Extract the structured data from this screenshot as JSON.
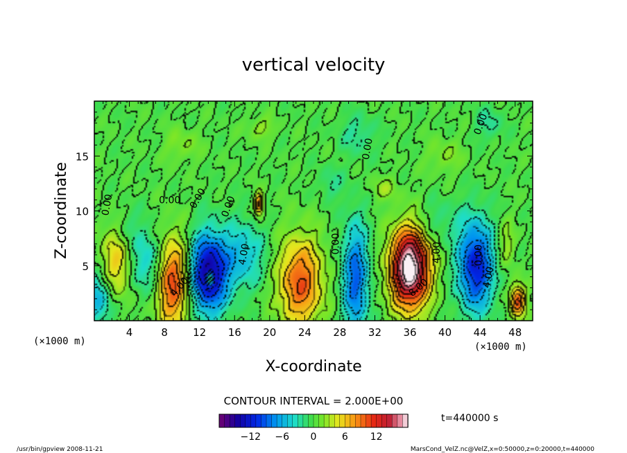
{
  "chart_data": {
    "type": "heatmap",
    "title": "vertical velocity",
    "xlabel": "X-coordinate",
    "ylabel": "Z-coordinate",
    "x_unit_left": "(×1000 m)",
    "x_unit_right": "(×1000 m)",
    "xlim": [
      0,
      50
    ],
    "ylim": [
      0,
      20
    ],
    "x_ticks": [
      4,
      8,
      12,
      16,
      20,
      24,
      28,
      32,
      36,
      40,
      44,
      48
    ],
    "y_ticks": [
      5,
      10,
      15
    ],
    "contour_interval_text": "CONTOUR INTERVAL = 2.000E+00",
    "time_label": "t=440000 s",
    "colorbar": {
      "min": -18,
      "max": 18,
      "ticks": [
        -12,
        -6,
        0,
        6,
        12
      ]
    },
    "contour_labels": [
      {
        "text": "0.00",
        "x": 1.8,
        "z": 10.5,
        "rotate": -80
      },
      {
        "text": "0.00",
        "x": 8.6,
        "z": 10.7,
        "rotate": 0
      },
      {
        "text": "0.00",
        "x": 12.1,
        "z": 11.0,
        "rotate": -60
      },
      {
        "text": "0.00",
        "x": 15.6,
        "z": 10.3,
        "rotate": -70
      },
      {
        "text": "0.00",
        "x": 27.9,
        "z": 7.0,
        "rotate": -90
      },
      {
        "text": "0.00",
        "x": 31.5,
        "z": 15.6,
        "rotate": -80
      },
      {
        "text": "0.00",
        "x": 44.4,
        "z": 17.8,
        "rotate": -70
      },
      {
        "text": "4.00",
        "x": 17.4,
        "z": 6.0,
        "rotate": -80
      },
      {
        "text": "4.00",
        "x": 10.0,
        "z": 2.9,
        "rotate": -50
      },
      {
        "text": "4.00",
        "x": 39.4,
        "z": 6.2,
        "rotate": -90
      },
      {
        "text": "4.00",
        "x": 45.3,
        "z": 3.9,
        "rotate": -80
      },
      {
        "text": "8.00",
        "x": 37.2,
        "z": 2.8,
        "rotate": -40
      },
      {
        "text": "-0.00",
        "x": 44.2,
        "z": 5.8,
        "rotate": -90
      }
    ],
    "extrema": [
      {
        "x": 2.5,
        "z": 5.2,
        "w": 6,
        "sx": 1.8,
        "sz": 3.5
      },
      {
        "x": 0.5,
        "z": 2.0,
        "w": -6,
        "sx": 1.8,
        "sz": 2.5
      },
      {
        "x": 6.0,
        "z": 5.3,
        "w": -5,
        "sx": 2.0,
        "sz": 3.0
      },
      {
        "x": 9.0,
        "z": 3.5,
        "w": 11,
        "sx": 2.0,
        "sz": 4.0
      },
      {
        "x": 13.0,
        "z": 4.3,
        "w": -15,
        "sx": 2.2,
        "sz": 3.5
      },
      {
        "x": 13.2,
        "z": 3.8,
        "w": 13,
        "sx": 0.4,
        "sz": 0.6
      },
      {
        "x": 17.0,
        "z": 6.0,
        "w": -5,
        "sx": 2.5,
        "sz": 3.0
      },
      {
        "x": 18.8,
        "z": 10.6,
        "w": 9,
        "sx": 0.5,
        "sz": 1.0
      },
      {
        "x": 23.5,
        "z": 3.5,
        "w": 10,
        "sx": 2.5,
        "sz": 4.0
      },
      {
        "x": 29.8,
        "z": 3.8,
        "w": -9,
        "sx": 1.5,
        "sz": 5.0
      },
      {
        "x": 36.0,
        "z": 4.8,
        "w": 20,
        "sx": 2.2,
        "sz": 3.6
      },
      {
        "x": 39.0,
        "z": 9.0,
        "w": -2,
        "sx": 3.0,
        "sz": 2.0
      },
      {
        "x": 43.5,
        "z": 5.0,
        "w": -12,
        "sx": 2.0,
        "sz": 4.0
      },
      {
        "x": 48.3,
        "z": 1.8,
        "w": 10,
        "sx": 0.9,
        "sz": 1.5
      },
      {
        "x": 47.0,
        "z": 7.0,
        "w": 3,
        "sx": 1.0,
        "sz": 2.0
      },
      {
        "x": 3.5,
        "z": 8.5,
        "w": -2,
        "sx": 1.5,
        "sz": 2.0
      },
      {
        "x": 30.0,
        "z": 17.0,
        "w": -2.5,
        "sx": 2.0,
        "sz": 1.8
      },
      {
        "x": 45.0,
        "z": 18.0,
        "w": -2.5,
        "sx": 1.5,
        "sz": 1.5
      },
      {
        "x": 27.0,
        "z": 12.5,
        "w": -2,
        "sx": 1.5,
        "sz": 1.5
      },
      {
        "x": 19.0,
        "z": 17.5,
        "w": 2.5,
        "sx": 1.5,
        "sz": 1.0
      },
      {
        "x": 33.0,
        "z": 12.0,
        "w": 2.5,
        "sx": 1.5,
        "sz": 1.0
      },
      {
        "x": 10.0,
        "z": 16.0,
        "w": 2.0,
        "sx": 2.0,
        "sz": 1.5
      },
      {
        "x": 40.0,
        "z": 15.0,
        "w": 2.0,
        "sx": 2.0,
        "sz": 1.5
      }
    ]
  },
  "footer": {
    "left": "/usr/bin/gpview 2008-11-21",
    "right": "MarsCond_VelZ.nc@VelZ,x=0:50000,z=0:20000,t=440000"
  }
}
